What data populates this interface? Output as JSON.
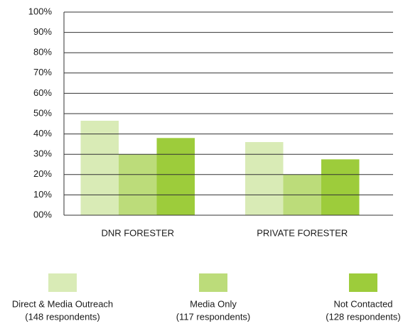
{
  "chart_data": {
    "type": "bar",
    "categories": [
      "DNR FORESTER",
      "PRIVATE FORESTER"
    ],
    "series": [
      {
        "name": "Direct & Media Outreach",
        "sublabel": "(148 respondents)",
        "color": "#d9ebb6",
        "values": [
          46.5,
          36
        ]
      },
      {
        "name": "Media Only",
        "sublabel": "(117 respondents)",
        "color": "#bcdc7a",
        "values": [
          30,
          20
        ]
      },
      {
        "name": "Not Contacted",
        "sublabel": "(128 respondents)",
        "color": "#9dcc3b",
        "values": [
          38,
          27.5
        ]
      }
    ],
    "ylim": [
      0,
      100
    ],
    "yticks": [
      {
        "value": 0,
        "label": "00%"
      },
      {
        "value": 10,
        "label": "10%"
      },
      {
        "value": 20,
        "label": "20%"
      },
      {
        "value": 30,
        "label": "30%"
      },
      {
        "value": 40,
        "label": "40%"
      },
      {
        "value": 50,
        "label": "50%"
      },
      {
        "value": 60,
        "label": "60%"
      },
      {
        "value": 70,
        "label": "70%"
      },
      {
        "value": 80,
        "label": "80%"
      },
      {
        "value": 90,
        "label": "90%"
      },
      {
        "value": 100,
        "label": "100%"
      }
    ],
    "grid": true,
    "legend": "bottom"
  }
}
